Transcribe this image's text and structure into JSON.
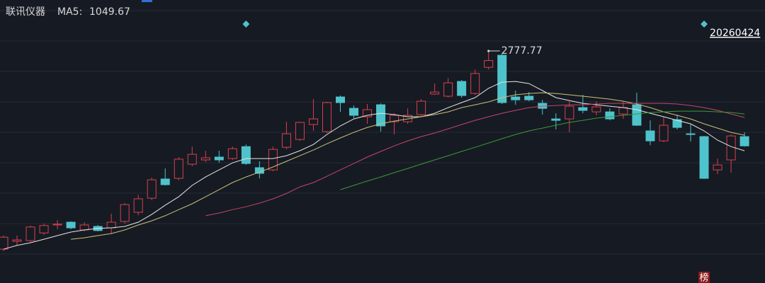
{
  "chart_data": {
    "type": "candlestick",
    "title": "联讯仪器",
    "log_scale": true,
    "ylim": [
      289,
      4567
    ],
    "grid": true,
    "up_color": "#d9414b",
    "down_color": "#4fc3cb",
    "open": [
      402,
      434,
      437,
      471,
      509,
      523,
      485,
      502,
      495,
      527,
      576,
      661,
      797,
      802,
      921,
      960,
      987,
      973,
      1093,
      890,
      871,
      1086,
      1172,
      1356,
      1265,
      1774,
      1588,
      1463,
      1644,
      1393,
      1393,
      1493,
      1824,
      1787,
      2064,
      1836,
      2368,
      2664,
      1774,
      1787,
      1667,
      1432,
      1432,
      1599,
      1534,
      1534,
      1503,
      1644,
      1274,
      1156,
      1422,
      1239,
      1205,
      871,
      960,
      1205
    ],
    "high": [
      459,
      459,
      506,
      516,
      534,
      527,
      523,
      509,
      568,
      630,
      683,
      808,
      883,
      987,
      1093,
      1050,
      1050,
      1093,
      1116,
      947,
      1093,
      1393,
      1393,
      1737,
      1691,
      1799,
      1632,
      1656,
      1667,
      1513,
      1588,
      1737,
      2022,
      2136,
      2092,
      2317,
      2777.77,
      2720,
      1888,
      1861,
      1725,
      1513,
      1702,
      1811,
      1702,
      1588,
      1691,
      1848,
      1412,
      1463,
      1493,
      1356,
      1213,
      973,
      1230,
      1256
    ],
    "low": [
      394,
      417,
      431,
      462,
      488,
      488,
      478,
      478,
      468,
      516,
      560,
      648,
      749,
      786,
      902,
      940,
      933,
      960,
      914,
      802,
      859,
      1064,
      1156,
      1274,
      1248,
      1534,
      1443,
      1365,
      1265,
      1230,
      1365,
      1463,
      1811,
      1762,
      1762,
      1811,
      2317,
      1656,
      1644,
      1702,
      1493,
      1292,
      1256,
      1513,
      1483,
      1412,
      1432,
      1337,
      1108,
      1140,
      1292,
      1148,
      797,
      836,
      848,
      1093
    ],
    "close": [
      452,
      440,
      499,
      506,
      513,
      495,
      509,
      482,
      523,
      621,
      657,
      791,
      754,
      967,
      1014,
      980,
      960,
      1071,
      927,
      842,
      1064,
      1239,
      1384,
      1432,
      1679,
      1679,
      1483,
      1567,
      1337,
      1483,
      1483,
      1702,
      1861,
      2036,
      1799,
      2230,
      2530,
      1679,
      1725,
      1725,
      1588,
      1412,
      1621,
      1556,
      1610,
      1432,
      1599,
      1346,
      1156,
      1346,
      1318,
      1230,
      802,
      914,
      1213,
      1101
    ],
    "series": [
      {
        "name": "MA5:",
        "color": "#e6e6e6",
        "values": [
          402,
          417,
          428,
          443,
          459,
          475,
          485,
          492,
          495,
          502,
          523,
          564,
          617,
          670,
          749,
          813,
          871,
          933,
          973,
          973,
          973,
          1000,
          1050,
          1116,
          1230,
          1337,
          1432,
          1483,
          1513,
          1493,
          1463,
          1463,
          1513,
          1599,
          1679,
          1762,
          1930,
          2050,
          2064,
          2022,
          1888,
          1762,
          1713,
          1667,
          1644,
          1621,
          1599,
          1567,
          1513,
          1463,
          1412,
          1365,
          1274,
          1164,
          1093,
          1049.67
        ]
      },
      {
        "color": "#c9c27a",
        "values": [
          null,
          null,
          null,
          null,
          null,
          443,
          449,
          459,
          468,
          485,
          509,
          530,
          557,
          591,
          626,
          670,
          718,
          770,
          813,
          853,
          896,
          947,
          1000,
          1057,
          1124,
          1189,
          1256,
          1318,
          1365,
          1402,
          1432,
          1463,
          1493,
          1534,
          1599,
          1644,
          1691,
          1762,
          1811,
          1836,
          1848,
          1836,
          1811,
          1787,
          1762,
          1737,
          1702,
          1656,
          1599,
          1534,
          1483,
          1432,
          1365,
          1309,
          1256,
          1222
        ]
      },
      {
        "color": "#c2466a",
        "values": [
          null,
          null,
          null,
          null,
          null,
          null,
          null,
          null,
          null,
          null,
          null,
          null,
          null,
          null,
          null,
          557,
          572,
          591,
          608,
          630,
          657,
          692,
          738,
          770,
          818,
          871,
          927,
          987,
          1043,
          1101,
          1156,
          1205,
          1248,
          1300,
          1356,
          1412,
          1463,
          1513,
          1556,
          1599,
          1621,
          1632,
          1644,
          1644,
          1656,
          1667,
          1667,
          1667,
          1667,
          1667,
          1656,
          1632,
          1599,
          1556,
          1503,
          1453
        ]
      },
      {
        "color": "#3a9a3a",
        "values": [
          null,
          null,
          null,
          null,
          null,
          null,
          null,
          null,
          null,
          null,
          null,
          null,
          null,
          null,
          null,
          null,
          null,
          null,
          null,
          null,
          null,
          null,
          null,
          null,
          null,
          718,
          749,
          781,
          813,
          848,
          883,
          921,
          960,
          1000,
          1043,
          1086,
          1132,
          1181,
          1230,
          1274,
          1309,
          1346,
          1384,
          1412,
          1443,
          1463,
          1483,
          1503,
          1524,
          1534,
          1545,
          1545,
          1545,
          1534,
          1524,
          1503
        ]
      }
    ],
    "markers": [
      {
        "index": 18
      },
      {
        "index": 52,
        "label": "20260424"
      }
    ],
    "badge": "榜"
  }
}
